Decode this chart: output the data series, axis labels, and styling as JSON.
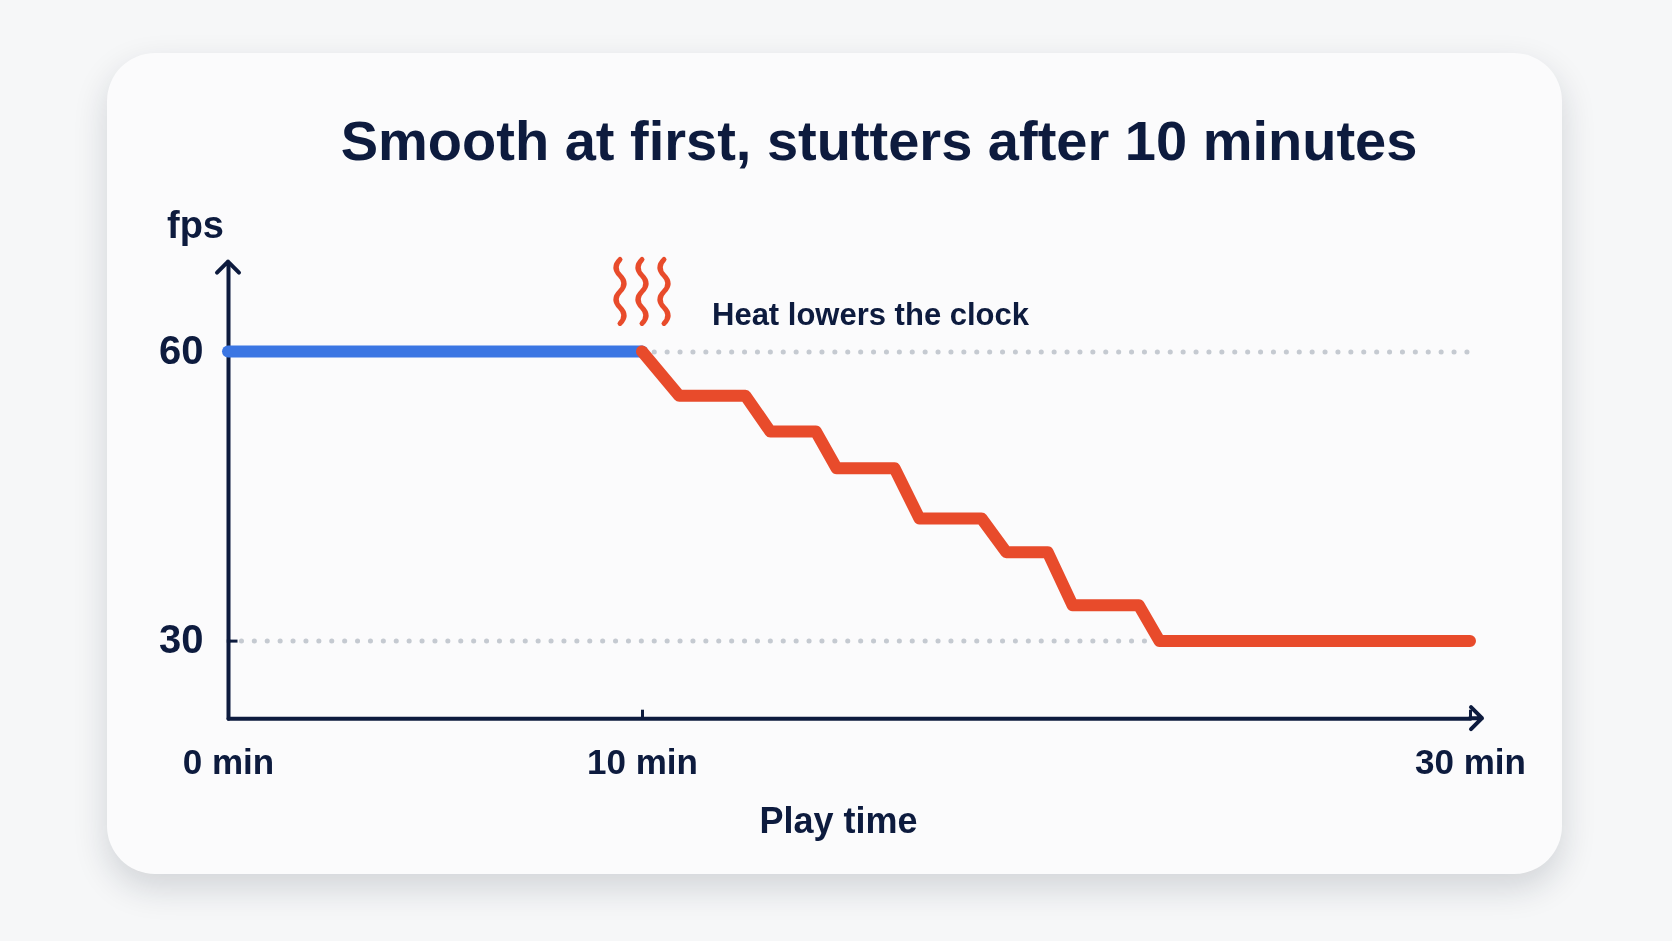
{
  "chart_data": {
    "type": "line",
    "title": "Smooth at first, stutters after 10 minutes",
    "xlabel": "Play time",
    "ylabel": "fps",
    "series": [
      {
        "color": "#3b76e3",
        "x": [
          0,
          10
        ],
        "values": [
          60,
          60
        ]
      },
      {
        "color": "#e84b2b",
        "x": [
          10,
          10.9,
          12.5,
          13.1,
          14.2,
          14.7,
          16.1,
          16.7,
          18.2,
          18.8,
          19.8,
          20.4,
          22,
          22.5,
          30
        ],
        "values": [
          60,
          55.4,
          55.4,
          51.7,
          51.7,
          47.9,
          47.9,
          42.7,
          42.7,
          39.2,
          39.2,
          33.7,
          33.7,
          30,
          30
        ]
      }
    ],
    "xlim": [
      0,
      30
    ],
    "xticks": [
      {
        "value": 0,
        "label": "0 min"
      },
      {
        "value": 10,
        "label": "10 min"
      },
      {
        "value": 30,
        "label": "30 min"
      }
    ],
    "ylim": [
      22,
      69
    ],
    "yticks": [
      30,
      60
    ],
    "grid": "y",
    "annotations": [
      {
        "text": "Heat lowers the clock",
        "x": 10,
        "y": 60
      }
    ]
  }
}
